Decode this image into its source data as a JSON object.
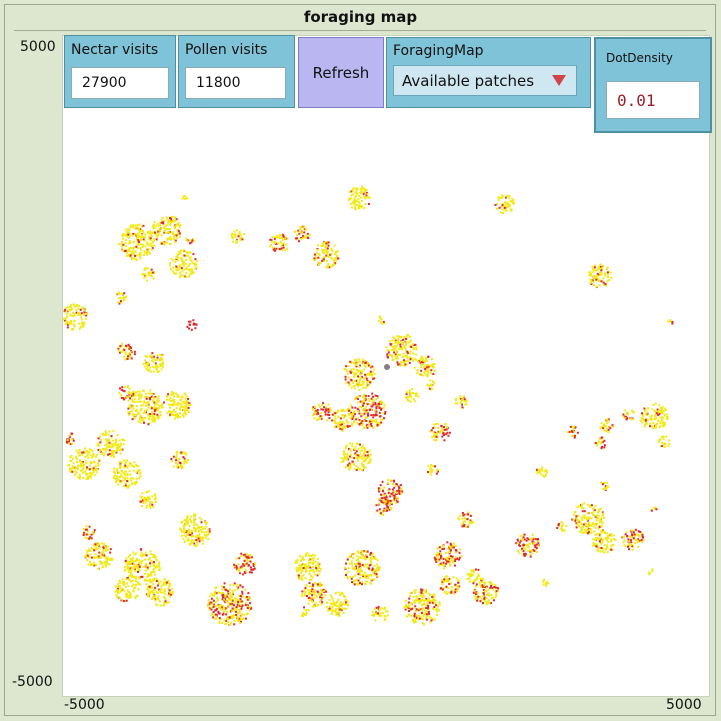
{
  "window": {
    "title": "foraging map"
  },
  "axes": {
    "y_max": "5000",
    "y_min": "-5000",
    "x_min": "-5000",
    "x_max": "5000"
  },
  "nectar": {
    "label": "Nectar visits",
    "value": "27900"
  },
  "pollen": {
    "label": "Pollen visits",
    "value": "11800"
  },
  "refresh": {
    "label": "Refresh"
  },
  "foraging_map": {
    "label": "ForagingMap",
    "selected": "Available patches"
  },
  "dot_density": {
    "label": "DotDensity",
    "value": "0.01"
  },
  "colors": {
    "background": "#dde7cf",
    "monitor": "#7fc3d8",
    "button": "#b9b6f2",
    "dot_yellow": "#f2ea14",
    "dot_red": "#e2272c",
    "hive": "#8c7a86"
  }
}
